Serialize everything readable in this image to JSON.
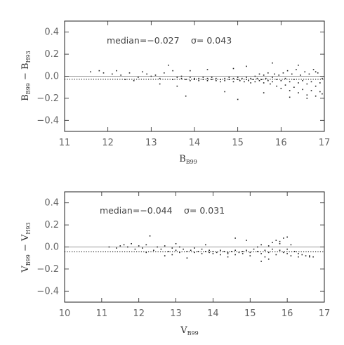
{
  "chart_data": [
    {
      "type": "scatter",
      "xlabel": "B",
      "xlabel_sub": "B99",
      "ylabel_parts": [
        "B",
        "B99",
        " − B",
        "H93"
      ],
      "xlim": [
        11,
        17
      ],
      "ylim": [
        -0.5,
        0.5
      ],
      "xticks": [
        11,
        12,
        13,
        14,
        15,
        16,
        17
      ],
      "xtick_labels": [
        "11",
        "12",
        "13",
        "14",
        "15",
        "16",
        "17"
      ],
      "yticks": [
        -0.4,
        -0.2,
        0.0,
        0.2,
        0.4
      ],
      "ytick_labels": [
        "−0.4",
        "−0.2",
        "0.0",
        "0.2",
        "0.4"
      ],
      "annotation_median": "median=−0.027",
      "annotation_sigma": "σ= 0.043",
      "median": -0.027,
      "sigma": 0.043,
      "reference_line": 0.0,
      "grid": false,
      "points": [
        [
          11.6,
          0.04
        ],
        [
          11.8,
          0.05
        ],
        [
          11.9,
          0.03
        ],
        [
          12.1,
          0.02
        ],
        [
          12.2,
          0.05
        ],
        [
          12.3,
          0.01
        ],
        [
          12.5,
          0.03
        ],
        [
          12.7,
          -0.01
        ],
        [
          12.9,
          0.02
        ],
        [
          12.6,
          -0.04
        ],
        [
          13.0,
          0.0
        ],
        [
          13.1,
          0.01
        ],
        [
          13.2,
          -0.02
        ],
        [
          13.3,
          0.03
        ],
        [
          13.4,
          0.1
        ],
        [
          13.5,
          -0.03
        ],
        [
          13.5,
          0.05
        ],
        [
          13.6,
          -0.01
        ],
        [
          13.6,
          -0.09
        ],
        [
          13.7,
          0.0
        ],
        [
          13.7,
          -0.02
        ],
        [
          13.8,
          -0.03
        ],
        [
          13.8,
          -0.18
        ],
        [
          13.9,
          -0.01
        ],
        [
          13.9,
          -0.04
        ],
        [
          14.0,
          -0.02
        ],
        [
          14.0,
          -0.03
        ],
        [
          14.1,
          -0.02
        ],
        [
          14.1,
          -0.04
        ],
        [
          14.2,
          -0.01
        ],
        [
          14.2,
          -0.03
        ],
        [
          14.3,
          -0.02
        ],
        [
          14.3,
          -0.04
        ],
        [
          14.4,
          -0.03
        ],
        [
          14.4,
          -0.01
        ],
        [
          14.5,
          -0.02
        ],
        [
          14.5,
          -0.04
        ],
        [
          14.6,
          -0.03
        ],
        [
          14.6,
          -0.05
        ],
        [
          14.7,
          -0.02
        ],
        [
          14.7,
          -0.04
        ],
        [
          14.8,
          -0.03
        ],
        [
          14.8,
          -0.01
        ],
        [
          14.9,
          -0.02
        ],
        [
          14.9,
          -0.05
        ],
        [
          15.0,
          -0.03
        ],
        [
          15.0,
          -0.01
        ],
        [
          15.05,
          -0.04
        ],
        [
          15.1,
          -0.02
        ],
        [
          15.15,
          -0.05
        ],
        [
          15.2,
          -0.03
        ],
        [
          15.2,
          -0.01
        ],
        [
          15.25,
          -0.04
        ],
        [
          15.3,
          -0.02
        ],
        [
          15.3,
          -0.06
        ],
        [
          15.35,
          -0.03
        ],
        [
          15.4,
          0.0
        ],
        [
          15.4,
          -0.05
        ],
        [
          15.45,
          -0.02
        ],
        [
          15.5,
          -0.04
        ],
        [
          15.5,
          0.02
        ],
        [
          15.55,
          -0.03
        ],
        [
          15.6,
          -0.06
        ],
        [
          15.6,
          0.01
        ],
        [
          15.65,
          -0.02
        ],
        [
          15.7,
          -0.04
        ],
        [
          15.7,
          0.03
        ],
        [
          15.75,
          -0.07
        ],
        [
          15.8,
          -0.01
        ],
        [
          15.8,
          -0.05
        ],
        [
          15.85,
          0.02
        ],
        [
          15.9,
          -0.03
        ],
        [
          15.9,
          -0.09
        ],
        [
          15.95,
          0.01
        ],
        [
          16.0,
          -0.04
        ],
        [
          16.0,
          -0.11
        ],
        [
          16.05,
          0.03
        ],
        [
          16.1,
          -0.02
        ],
        [
          16.1,
          -0.08
        ],
        [
          16.15,
          0.05
        ],
        [
          16.2,
          -0.05
        ],
        [
          16.2,
          -0.13
        ],
        [
          16.25,
          0.02
        ],
        [
          16.3,
          -0.03
        ],
        [
          16.3,
          -0.1
        ],
        [
          16.35,
          0.06
        ],
        [
          16.4,
          -0.06
        ],
        [
          16.4,
          -0.15
        ],
        [
          16.45,
          0.01
        ],
        [
          16.5,
          -0.04
        ],
        [
          16.5,
          -0.12
        ],
        [
          16.55,
          0.04
        ],
        [
          16.6,
          -0.07
        ],
        [
          16.6,
          -0.17
        ],
        [
          16.65,
          0.02
        ],
        [
          16.7,
          -0.05
        ],
        [
          16.7,
          -0.13
        ],
        [
          16.75,
          0.06
        ],
        [
          16.8,
          -0.09
        ],
        [
          16.8,
          -0.18
        ],
        [
          16.85,
          0.03
        ],
        [
          16.9,
          -0.06
        ],
        [
          16.9,
          -0.14
        ],
        [
          16.95,
          -0.02
        ],
        [
          16.95,
          -0.16
        ],
        [
          14.9,
          0.07
        ],
        [
          15.2,
          0.09
        ],
        [
          15.8,
          0.12
        ],
        [
          16.4,
          0.1
        ],
        [
          14.3,
          0.06
        ],
        [
          15.0,
          -0.21
        ],
        [
          16.6,
          -0.2
        ],
        [
          13.2,
          -0.07
        ],
        [
          14.7,
          -0.14
        ],
        [
          15.6,
          -0.15
        ],
        [
          16.2,
          -0.19
        ],
        [
          12.4,
          -0.03
        ],
        [
          12.8,
          0.04
        ],
        [
          13.9,
          0.05
        ],
        [
          16.8,
          0.04
        ]
      ]
    },
    {
      "type": "scatter",
      "xlabel": "V",
      "xlabel_sub": "B99",
      "ylabel_parts": [
        "V",
        "B99",
        " − V",
        "H93"
      ],
      "xlim": [
        10,
        17
      ],
      "ylim": [
        -0.5,
        0.5
      ],
      "xticks": [
        10,
        11,
        12,
        13,
        14,
        15,
        16,
        17
      ],
      "xtick_labels": [
        "10",
        "11",
        "12",
        "13",
        "14",
        "15",
        "16",
        "17"
      ],
      "yticks": [
        -0.4,
        -0.2,
        0.0,
        0.2,
        0.4
      ],
      "ytick_labels": [
        "−0.4",
        "−0.2",
        "0.0",
        "0.2",
        "0.4"
      ],
      "annotation_median": "median=−0.044",
      "annotation_sigma": "σ= 0.031",
      "median": -0.044,
      "sigma": 0.031,
      "reference_line": 0.0,
      "grid": false,
      "points": [
        [
          11.2,
          0.0
        ],
        [
          11.4,
          -0.01
        ],
        [
          11.6,
          0.02
        ],
        [
          11.7,
          0.0
        ],
        [
          11.8,
          0.03
        ],
        [
          11.9,
          -0.02
        ],
        [
          12.0,
          0.01
        ],
        [
          12.1,
          -0.01
        ],
        [
          12.2,
          0.02
        ],
        [
          12.3,
          0.1
        ],
        [
          12.4,
          -0.03
        ],
        [
          12.5,
          0.0
        ],
        [
          12.6,
          -0.02
        ],
        [
          12.7,
          0.01
        ],
        [
          12.8,
          -0.04
        ],
        [
          12.9,
          -0.01
        ],
        [
          12.9,
          -0.07
        ],
        [
          13.0,
          -0.03
        ],
        [
          13.1,
          0.0
        ],
        [
          13.1,
          -0.05
        ],
        [
          13.2,
          -0.02
        ],
        [
          13.3,
          -0.04
        ],
        [
          13.3,
          -0.1
        ],
        [
          13.4,
          -0.03
        ],
        [
          13.5,
          -0.05
        ],
        [
          13.5,
          -0.01
        ],
        [
          13.6,
          -0.04
        ],
        [
          13.7,
          -0.06
        ],
        [
          13.7,
          -0.02
        ],
        [
          13.8,
          -0.04
        ],
        [
          13.9,
          -0.05
        ],
        [
          13.9,
          -0.03
        ],
        [
          14.0,
          -0.06
        ],
        [
          14.0,
          -0.04
        ],
        [
          14.1,
          -0.05
        ],
        [
          14.2,
          -0.03
        ],
        [
          14.2,
          -0.07
        ],
        [
          14.3,
          -0.04
        ],
        [
          14.4,
          -0.06
        ],
        [
          14.4,
          -0.05
        ],
        [
          14.5,
          -0.04
        ],
        [
          14.6,
          -0.07
        ],
        [
          14.6,
          -0.03
        ],
        [
          14.7,
          -0.05
        ],
        [
          14.8,
          -0.04
        ],
        [
          14.8,
          -0.06
        ],
        [
          14.9,
          -0.03
        ],
        [
          15.0,
          -0.05
        ],
        [
          15.0,
          -0.08
        ],
        [
          15.1,
          -0.02
        ],
        [
          15.2,
          -0.04
        ],
        [
          15.2,
          0.0
        ],
        [
          15.3,
          -0.06
        ],
        [
          15.3,
          0.02
        ],
        [
          15.4,
          -0.03
        ],
        [
          15.4,
          -0.09
        ],
        [
          15.5,
          0.01
        ],
        [
          15.5,
          -0.05
        ],
        [
          15.6,
          0.04
        ],
        [
          15.6,
          -0.02
        ],
        [
          15.7,
          -0.07
        ],
        [
          15.7,
          0.06
        ],
        [
          15.8,
          -0.03
        ],
        [
          15.8,
          0.03
        ],
        [
          15.9,
          -0.05
        ],
        [
          15.9,
          0.08
        ],
        [
          16.0,
          -0.02
        ],
        [
          16.0,
          -0.06
        ],
        [
          16.1,
          0.02
        ],
        [
          16.1,
          -0.08
        ],
        [
          16.2,
          -0.04
        ],
        [
          16.3,
          -0.06
        ],
        [
          16.3,
          -0.09
        ],
        [
          16.4,
          -0.07
        ],
        [
          16.5,
          -0.08
        ],
        [
          16.6,
          -0.09
        ],
        [
          16.6,
          -0.08
        ],
        [
          16.7,
          -0.09
        ],
        [
          14.6,
          0.08
        ],
        [
          15.3,
          -0.13
        ],
        [
          15.8,
          0.05
        ],
        [
          12.7,
          -0.08
        ],
        [
          13.8,
          0.02
        ],
        [
          14.9,
          0.06
        ],
        [
          15.5,
          -0.11
        ],
        [
          16.0,
          0.09
        ],
        [
          12.2,
          -0.05
        ],
        [
          11.5,
          0.01
        ],
        [
          13.0,
          0.03
        ],
        [
          14.4,
          -0.09
        ]
      ]
    }
  ]
}
